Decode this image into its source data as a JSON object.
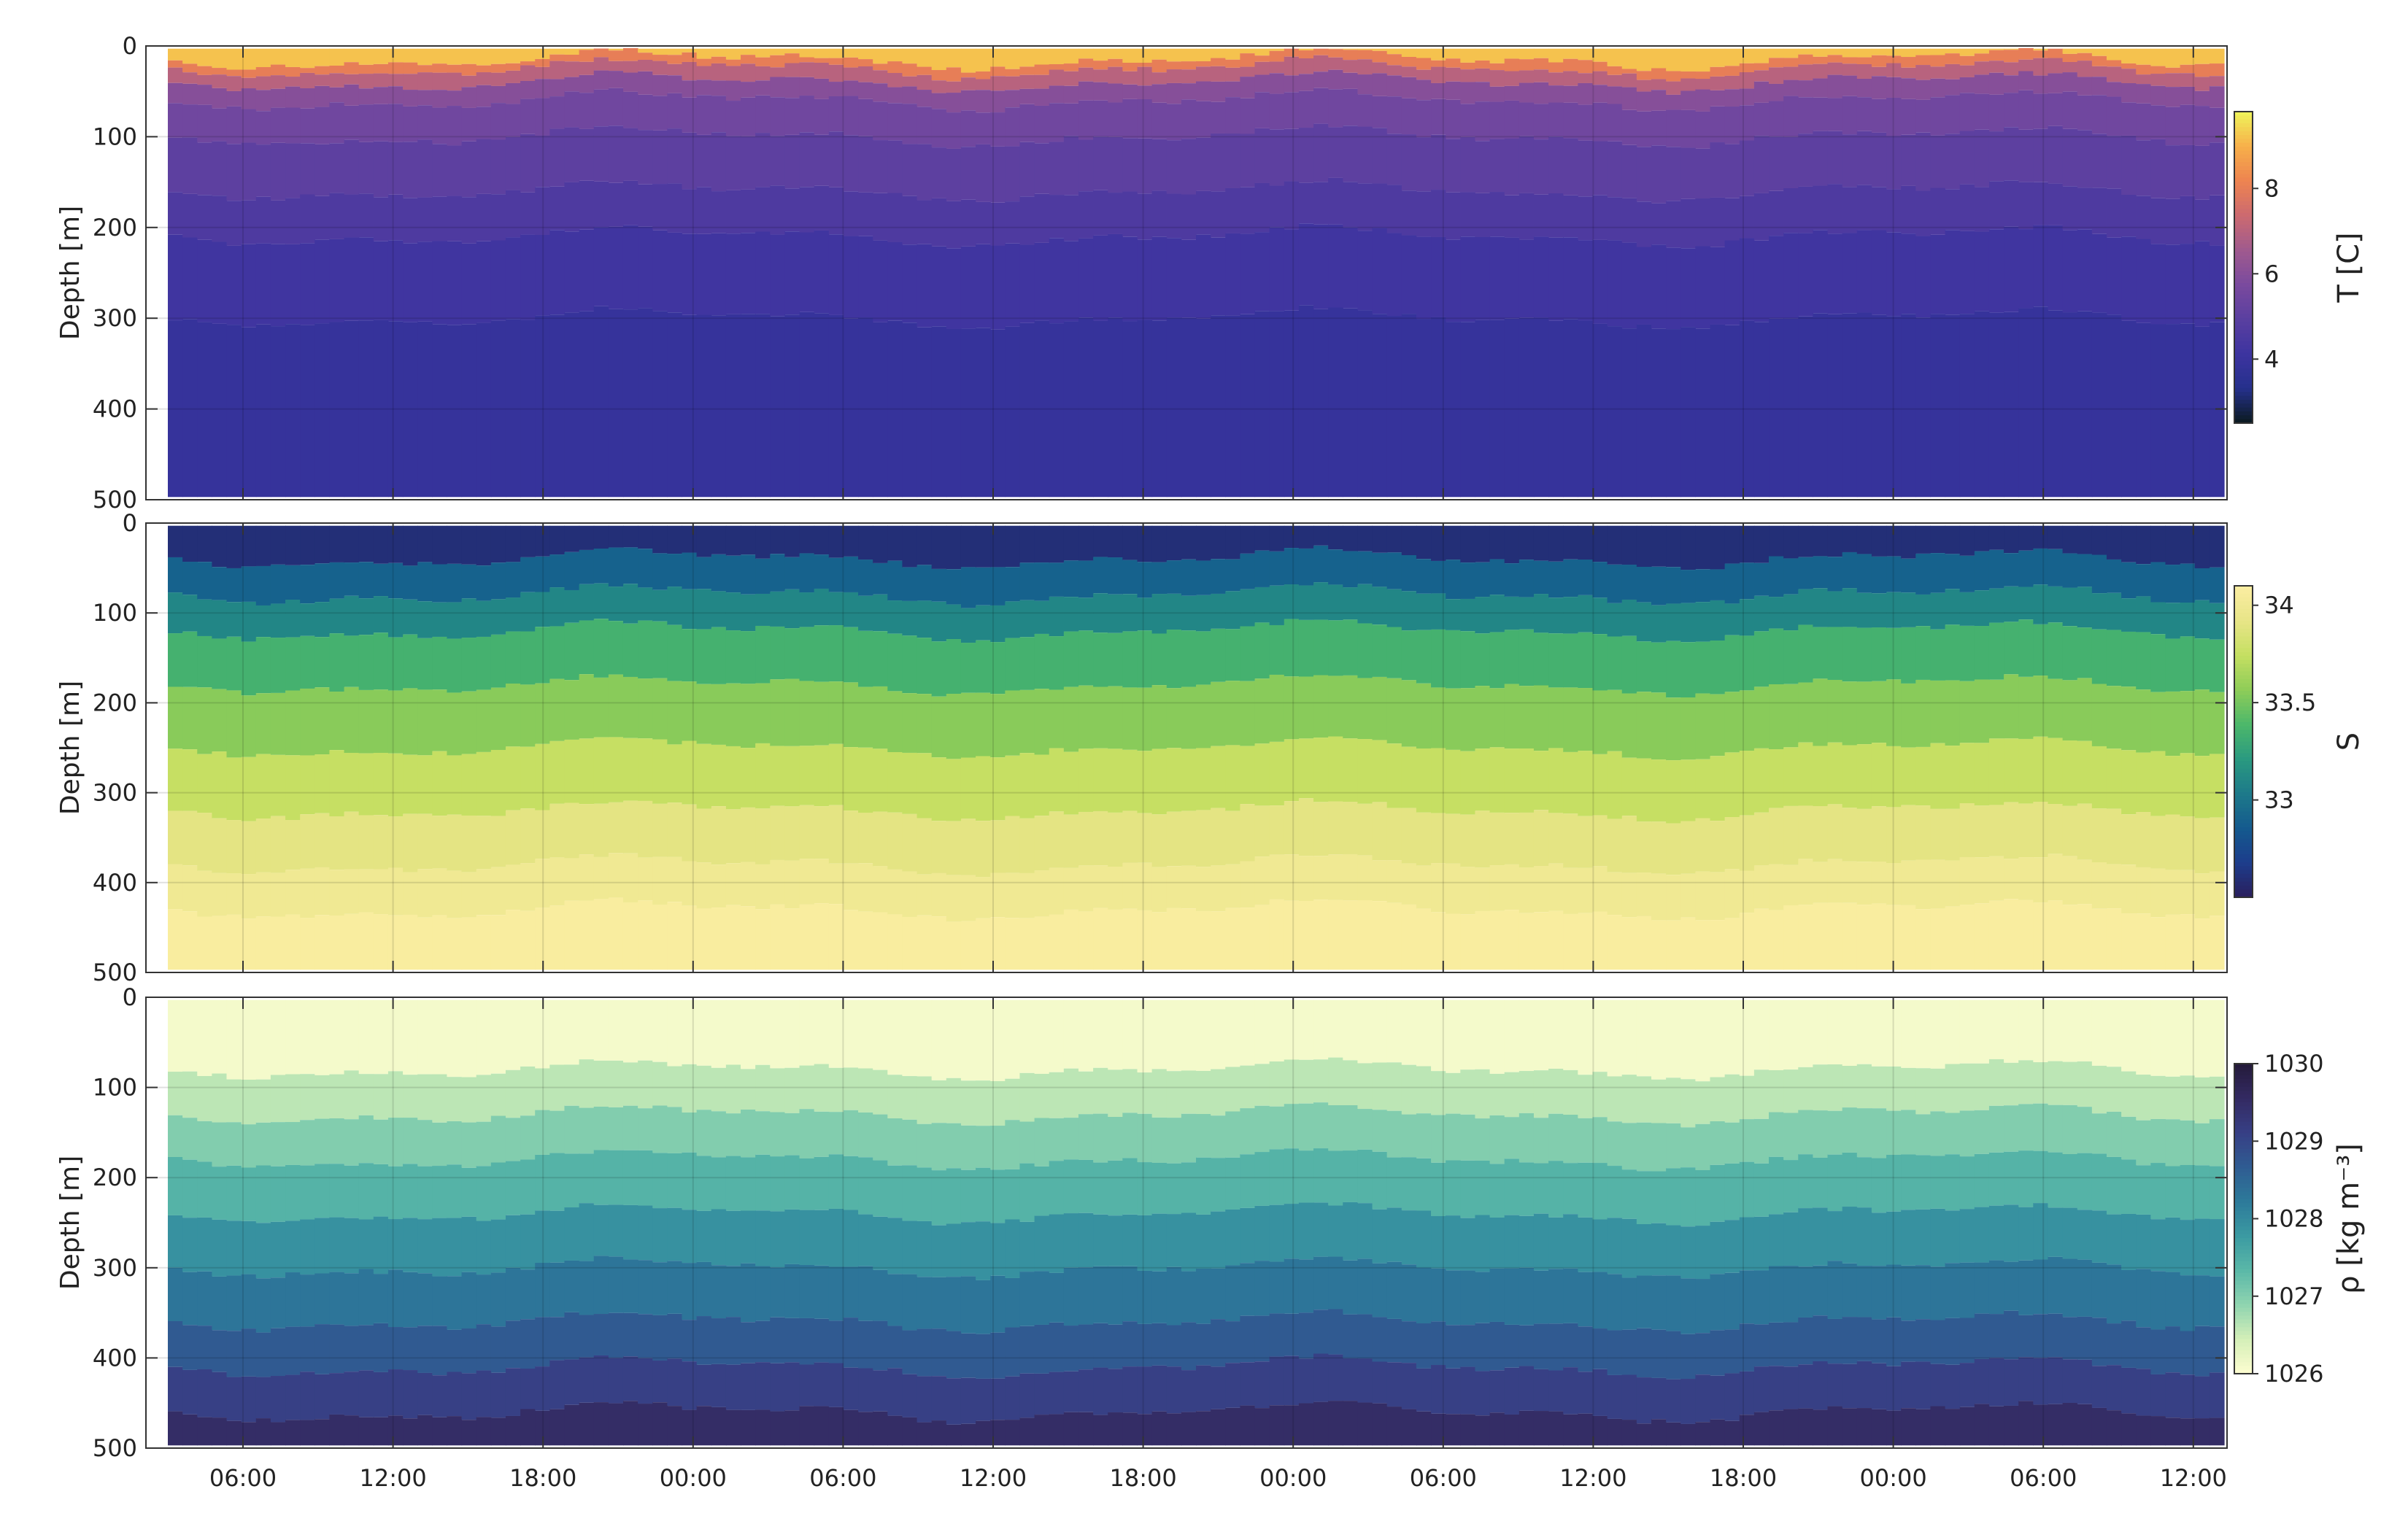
{
  "chart_data": [
    {
      "type": "heatmap",
      "variable": "temperature",
      "ylabel": "Depth [m]",
      "colorbar_label": "T [C]",
      "y_ticks": [
        "0",
        "100",
        "200",
        "300",
        "400",
        "500"
      ],
      "x_ticks": [
        "06:00",
        "12:00",
        "18:00",
        "00:00",
        "06:00",
        "12:00",
        "18:00",
        "00:00",
        "06:00",
        "12:00",
        "18:00",
        "00:00",
        "06:00",
        "12:00"
      ],
      "x_tick_labels_visible": false,
      "colorbar_ticks": [
        "4",
        "6",
        "8"
      ],
      "colorbar_range": [
        2.5,
        9.8
      ],
      "ylim": [
        0,
        500
      ],
      "y_inverted": true,
      "grid": true,
      "colormap": [
        "#0a1a1f",
        "#25308c",
        "#3d34a0",
        "#5a3fa0",
        "#7a4a9e",
        "#a05a8e",
        "#cc6a70",
        "#ee8450",
        "#f7b04a",
        "#eef55a"
      ],
      "levels": [
        {
          "depth_m": 3,
          "value_C": 9.2
        },
        {
          "depth_m": 15,
          "value_C": 8.0
        },
        {
          "depth_m": 25,
          "value_C": 7.0
        },
        {
          "depth_m": 40,
          "value_C": 6.0
        },
        {
          "depth_m": 60,
          "value_C": 5.5
        },
        {
          "depth_m": 100,
          "value_C": 5.0
        },
        {
          "depth_m": 160,
          "value_C": 4.6
        },
        {
          "depth_m": 210,
          "value_C": 4.2
        },
        {
          "depth_m": 300,
          "value_C": 3.9
        },
        {
          "depth_m": 497,
          "value_C": 3.8
        }
      ]
    },
    {
      "type": "heatmap",
      "variable": "salinity",
      "ylabel": "Depth [m]",
      "colorbar_label": "S",
      "y_ticks": [
        "0",
        "100",
        "200",
        "300",
        "400",
        "500"
      ],
      "x_ticks": [
        "06:00",
        "12:00",
        "18:00",
        "00:00",
        "06:00",
        "12:00",
        "18:00",
        "00:00",
        "06:00",
        "12:00",
        "18:00",
        "00:00",
        "06:00",
        "12:00"
      ],
      "x_tick_labels_visible": false,
      "colorbar_ticks": [
        "33",
        "33.5",
        "34"
      ],
      "colorbar_range": [
        32.5,
        34.1
      ],
      "ylim": [
        0,
        500
      ],
      "y_inverted": true,
      "grid": true,
      "colormap": [
        "#2a1e5c",
        "#1d3d8c",
        "#145a8e",
        "#1d7a8a",
        "#2a9a80",
        "#4db86a",
        "#8fcd58",
        "#c5df62",
        "#e8e588",
        "#fbeea2"
      ],
      "levels": [
        {
          "depth_m": 3,
          "value_psu": 32.6
        },
        {
          "depth_m": 40,
          "value_psu": 32.9
        },
        {
          "depth_m": 80,
          "value_psu": 33.1
        },
        {
          "depth_m": 120,
          "value_psu": 33.35
        },
        {
          "depth_m": 180,
          "value_psu": 33.55
        },
        {
          "depth_m": 250,
          "value_psu": 33.75
        },
        {
          "depth_m": 320,
          "value_psu": 33.9
        },
        {
          "depth_m": 380,
          "value_psu": 34.0
        },
        {
          "depth_m": 430,
          "value_psu": 34.08
        },
        {
          "depth_m": 497,
          "value_psu": 34.1
        }
      ]
    },
    {
      "type": "heatmap",
      "variable": "density",
      "ylabel": "Depth [m]",
      "colorbar_label": "ρ [kg m⁻³]",
      "y_ticks": [
        "0",
        "100",
        "200",
        "300",
        "400",
        "500"
      ],
      "x_ticks": [
        "06:00",
        "12:00",
        "18:00",
        "00:00",
        "06:00",
        "12:00",
        "18:00",
        "00:00",
        "06:00",
        "12:00",
        "18:00",
        "00:00",
        "06:00",
        "12:00"
      ],
      "x_tick_labels_visible": true,
      "colorbar_ticks": [
        "1026",
        "1027",
        "1028",
        "1029",
        "1030"
      ],
      "colorbar_range": [
        1026,
        1030
      ],
      "ylim": [
        0,
        500
      ],
      "y_inverted": true,
      "grid": true,
      "colormap": [
        "#fdfdd0",
        "#d4efb8",
        "#8fd4b0",
        "#5ab8a8",
        "#3b9aa2",
        "#2d7a9a",
        "#2f5c92",
        "#373f85",
        "#332a62",
        "#241a3a"
      ],
      "levels": [
        {
          "depth_m": 3,
          "value_kgm3": 1026.1
        },
        {
          "depth_m": 80,
          "value_kgm3": 1026.6
        },
        {
          "depth_m": 130,
          "value_kgm3": 1027.0
        },
        {
          "depth_m": 180,
          "value_kgm3": 1027.4
        },
        {
          "depth_m": 240,
          "value_kgm3": 1027.9
        },
        {
          "depth_m": 300,
          "value_kgm3": 1028.3
        },
        {
          "depth_m": 360,
          "value_kgm3": 1028.7
        },
        {
          "depth_m": 410,
          "value_kgm3": 1029.1
        },
        {
          "depth_m": 460,
          "value_kgm3": 1029.5
        },
        {
          "depth_m": 497,
          "value_kgm3": 1029.8
        }
      ]
    }
  ]
}
